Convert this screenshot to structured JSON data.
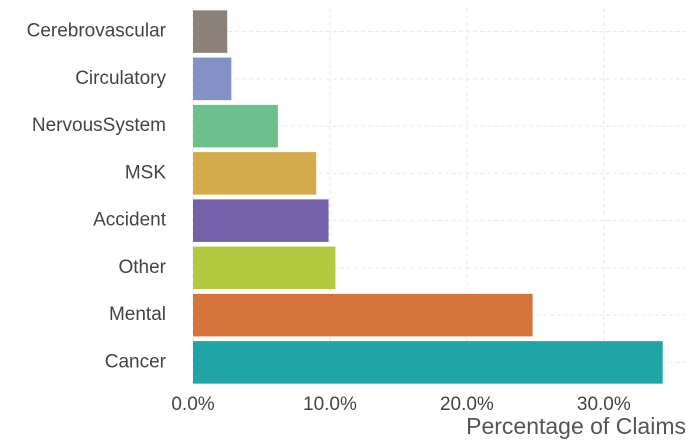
{
  "chart_data": {
    "type": "bar",
    "orientation": "horizontal",
    "x_label": "Percentage of Claims",
    "categories": [
      "Cerebrovascular",
      "Circulatory",
      "NervousSystem",
      "MSK",
      "Accident",
      "Other",
      "Mental",
      "Cancer"
    ],
    "values": [
      2.5,
      2.8,
      6.2,
      9.0,
      9.9,
      10.4,
      24.8,
      34.3
    ],
    "colors": [
      "#8c8279",
      "#8491c9",
      "#6cc08c",
      "#d4ab4a",
      "#7360a8",
      "#b3c93f",
      "#d4733a",
      "#1fa5a6"
    ],
    "xlim": [
      0,
      36
    ],
    "xticks": [
      {
        "value": 0,
        "label": "0.0%"
      },
      {
        "value": 10,
        "label": "10.0%"
      },
      {
        "value": 20,
        "label": "20.0%"
      },
      {
        "value": 30,
        "label": "30.0%"
      }
    ],
    "grid": true
  }
}
